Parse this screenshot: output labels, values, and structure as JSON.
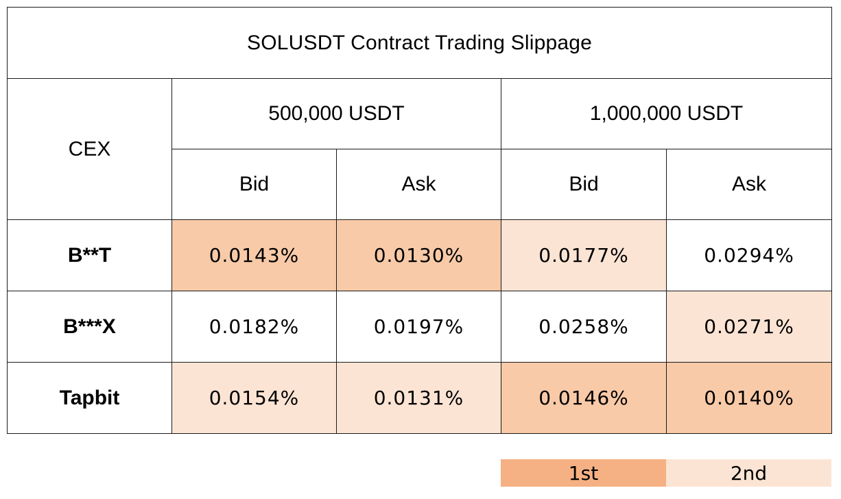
{
  "chart_data": {
    "type": "table",
    "title": "SOLUSDT Contract Trading Slippage",
    "row_header_label": "CEX",
    "column_groups": [
      {
        "label": "500,000 USDT",
        "columns": [
          "Bid",
          "Ask"
        ]
      },
      {
        "label": "1,000,000 USDT",
        "columns": [
          "Bid",
          "Ask"
        ]
      }
    ],
    "rows": [
      {
        "name": "B**T",
        "values": [
          "0.0143%",
          "0.0130%",
          "0.0177%",
          "0.0294%"
        ],
        "rank": [
          "1st",
          "1st",
          "2nd",
          ""
        ]
      },
      {
        "name": "B***X",
        "values": [
          "0.0182%",
          "0.0197%",
          "0.0258%",
          "0.0271%"
        ],
        "rank": [
          "",
          "",
          "",
          "2nd"
        ]
      },
      {
        "name": "Tapbit",
        "values": [
          "0.0154%",
          "0.0131%",
          "0.0146%",
          "0.0140%"
        ],
        "rank": [
          "2nd",
          "2nd",
          "1st",
          "1st"
        ]
      }
    ],
    "legend": [
      {
        "label": "1st",
        "color": "#f5b083"
      },
      {
        "label": "2nd",
        "color": "#fce4d4"
      }
    ]
  },
  "colors": {
    "first_cell": "#f8caa8",
    "second_cell": "#fce4d4",
    "border": "#1a1a1a"
  }
}
